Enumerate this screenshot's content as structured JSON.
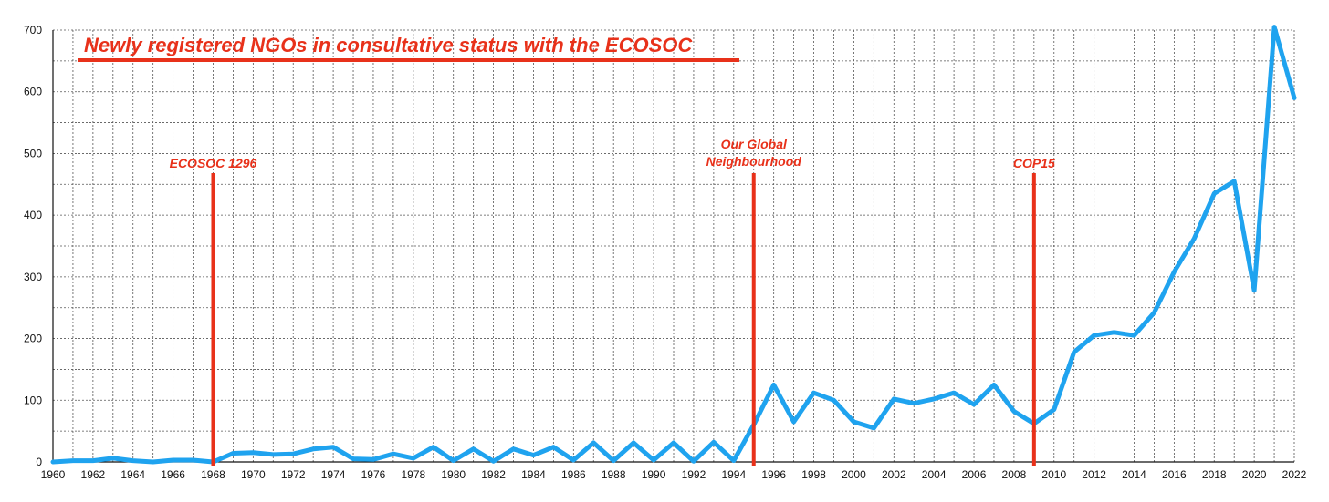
{
  "chart_data": {
    "type": "line",
    "title": "Newly registered NGOs in consultative status with the ECOSOC",
    "xlabel": "",
    "ylabel": "",
    "xlim": [
      1960,
      2022
    ],
    "ylim": [
      0,
      700
    ],
    "grid": true,
    "x_tick_labels": [
      "1960",
      "1962",
      "1964",
      "1966",
      "1968",
      "1970",
      "1972",
      "1974",
      "1976",
      "1978",
      "1980",
      "1982",
      "1984",
      "1986",
      "1988",
      "1990",
      "1992",
      "1994",
      "1996",
      "1998",
      "2000",
      "2002",
      "2004",
      "2006",
      "2008",
      "2010",
      "2012",
      "2014",
      "2016",
      "2018",
      "2020",
      "2022"
    ],
    "y_tick_labels": [
      "0",
      "100",
      "200",
      "300",
      "400",
      "500",
      "600",
      "700"
    ],
    "series": [
      {
        "name": "Newly registered NGOs",
        "color": "#1fa3ef",
        "x": [
          1960,
          1961,
          1962,
          1963,
          1964,
          1965,
          1966,
          1967,
          1968,
          1969,
          1970,
          1971,
          1972,
          1973,
          1974,
          1975,
          1976,
          1977,
          1978,
          1979,
          1980,
          1981,
          1982,
          1983,
          1984,
          1985,
          1986,
          1987,
          1988,
          1989,
          1990,
          1991,
          1992,
          1993,
          1994,
          1995,
          1996,
          1997,
          1998,
          1999,
          2000,
          2001,
          2002,
          2003,
          2004,
          2005,
          2006,
          2007,
          2008,
          2009,
          2010,
          2011,
          2012,
          2013,
          2014,
          2015,
          2016,
          2017,
          2018,
          2019,
          2020,
          2021,
          2022
        ],
        "values": [
          0,
          2,
          2,
          6,
          2,
          0,
          3,
          3,
          0,
          14,
          15,
          12,
          13,
          21,
          24,
          5,
          4,
          13,
          6,
          24,
          2,
          21,
          1,
          21,
          11,
          24,
          3,
          31,
          2,
          31,
          3,
          31,
          1,
          32,
          2,
          60,
          125,
          65,
          112,
          100,
          65,
          55,
          102,
          95,
          102,
          112,
          93,
          125,
          82,
          62,
          85,
          178,
          205,
          210,
          205,
          242,
          308,
          362,
          435,
          455,
          278,
          705,
          590
        ]
      }
    ],
    "annotations": [
      {
        "label": "ECOSOC 1296",
        "x": 1968,
        "color": "#e8311a"
      },
      {
        "label": "Our Global Neighbourhood",
        "line1": "Our Global",
        "line2": "Neighbourhood",
        "x": 1995,
        "color": "#e8311a"
      },
      {
        "label": "COP15",
        "x": 2009,
        "color": "#e8311a"
      }
    ]
  }
}
